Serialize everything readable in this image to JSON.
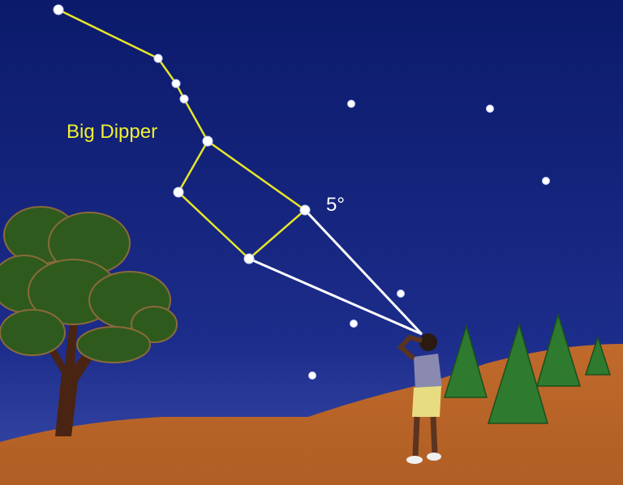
{
  "labels": {
    "constellation": "Big Dipper",
    "angle": "5°"
  }
}
